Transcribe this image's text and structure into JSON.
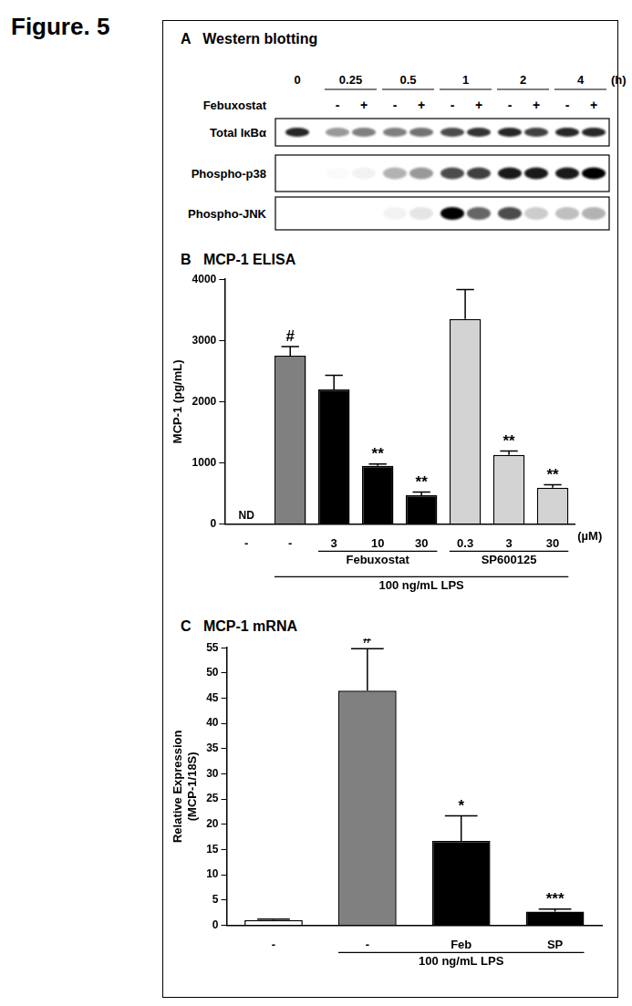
{
  "figure_label": "Figure. 5",
  "blot": {
    "panel": "A",
    "title": "Western blotting",
    "time_unit": "(h)",
    "treatment": "Febuxostat",
    "timepoints": [
      {
        "label": "0",
        "signs": [
          null
        ]
      },
      {
        "label": "0.25",
        "signs": [
          "-",
          "+"
        ]
      },
      {
        "label": "0.5",
        "signs": [
          "-",
          "+"
        ]
      },
      {
        "label": "1",
        "signs": [
          "-",
          "+"
        ]
      },
      {
        "label": "2",
        "signs": [
          "-",
          "+"
        ]
      },
      {
        "label": "4",
        "signs": [
          "-",
          "+"
        ]
      }
    ],
    "rows": [
      {
        "label": "Total IκBα",
        "intensities": [
          0.85,
          0.4,
          0.5,
          0.5,
          0.55,
          0.7,
          0.8,
          0.85,
          0.75,
          0.85,
          0.85
        ]
      },
      {
        "label": "Phospho-p38",
        "intensities": [
          0,
          0.02,
          0.05,
          0.3,
          0.4,
          0.7,
          0.75,
          0.9,
          0.9,
          0.9,
          1.0
        ]
      },
      {
        "label": "Phospho-JNK",
        "intensities": [
          0,
          0,
          0,
          0.05,
          0.1,
          1.0,
          0.6,
          0.7,
          0.2,
          0.25,
          0.3
        ]
      }
    ]
  },
  "chart_data": [
    {
      "type": "bar",
      "panel": "B",
      "title": "MCP-1 ELISA",
      "y_label": "MCP-1 (pg/mL)",
      "x_label": "(µM)",
      "categories": [
        "-",
        "-",
        "3",
        "10",
        "30",
        "0.3",
        "3",
        "30"
      ],
      "values": [
        null,
        2750,
        2200,
        950,
        470,
        3350,
        1130,
        590
      ],
      "errors": [
        null,
        150,
        230,
        30,
        50,
        480,
        60,
        50
      ],
      "value_labels": [
        "ND",
        null,
        null,
        null,
        null,
        null,
        null,
        null
      ],
      "annotations": [
        null,
        "#",
        null,
        "**",
        "**",
        null,
        "**",
        "**"
      ],
      "colors": [
        "#ffffff",
        "#808080",
        "#000000",
        "#000000",
        "#000000",
        "#d3d3d3",
        "#d3d3d3",
        "#d3d3d3"
      ],
      "groups": [
        {
          "label": "Febuxostat",
          "start": 2,
          "end": 4
        },
        {
          "label": "SP600125",
          "start": 5,
          "end": 7
        },
        {
          "label": "100 ng/mL LPS",
          "start": 1,
          "end": 7
        }
      ],
      "ylim": [
        0,
        4000
      ],
      "yticks": [
        0,
        1000,
        2000,
        3000,
        4000
      ],
      "grid": false
    },
    {
      "type": "bar",
      "panel": "C",
      "title": "MCP-1 mRNA",
      "y_label": [
        "Relative Expression",
        "(MCP-1/18S)"
      ],
      "categories": [
        "-",
        "-",
        "Feb",
        "SP"
      ],
      "values": [
        1,
        46.5,
        16.7,
        2.7
      ],
      "errors": [
        0.2,
        8.3,
        5,
        0.5
      ],
      "annotations": [
        null,
        "#",
        "*",
        "***"
      ],
      "colors": [
        "#ffffff",
        "#808080",
        "#000000",
        "#000000"
      ],
      "groups": [
        {
          "label": "100 ng/mL LPS",
          "start": 1,
          "end": 3
        }
      ],
      "ylim": [
        0,
        55
      ],
      "yticks": [
        0,
        5,
        10,
        15,
        20,
        25,
        30,
        35,
        40,
        45,
        50,
        55
      ],
      "grid": false
    }
  ]
}
